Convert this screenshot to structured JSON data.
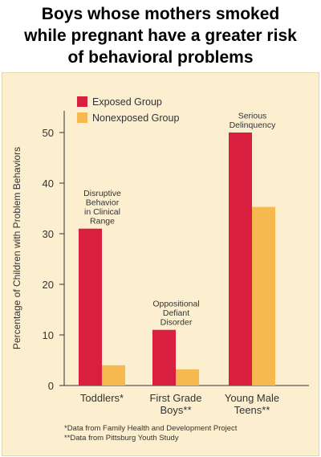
{
  "headline": {
    "line1": "Boys whose mothers smoked",
    "line2": "while pregnant have a greater risk",
    "line3": "of behavioral problems"
  },
  "colors": {
    "exposed": "#d81f3f",
    "nonexposed": "#f5b94f",
    "background": "#fbefcf"
  },
  "chart_data": {
    "type": "bar",
    "ylabel": "Percentage of Children with Problem Behaviors",
    "ylim": [
      0,
      50
    ],
    "yticks": [
      0,
      10,
      20,
      30,
      40,
      50
    ],
    "grid": false,
    "legend_position": "top-left",
    "categories": [
      [
        "Toddlers*"
      ],
      [
        "First Grade",
        "Boys**"
      ],
      [
        "Young Male",
        "Teens**"
      ]
    ],
    "series": [
      {
        "name": "Exposed Group",
        "values": [
          31,
          11,
          50
        ]
      },
      {
        "name": "Nonexposed Group",
        "values": [
          4,
          3.2,
          35.3
        ]
      }
    ],
    "annotations": [
      [
        "Disruptive",
        "Behavior",
        "in Clinical",
        "Range"
      ],
      [
        "Oppositional",
        "Defiant",
        "Disorder"
      ],
      [
        "Serious",
        "Delinquency"
      ]
    ],
    "footnotes": [
      "*Data from Family Health and Development Project",
      "**Data from Pittsburg Youth Study"
    ]
  }
}
